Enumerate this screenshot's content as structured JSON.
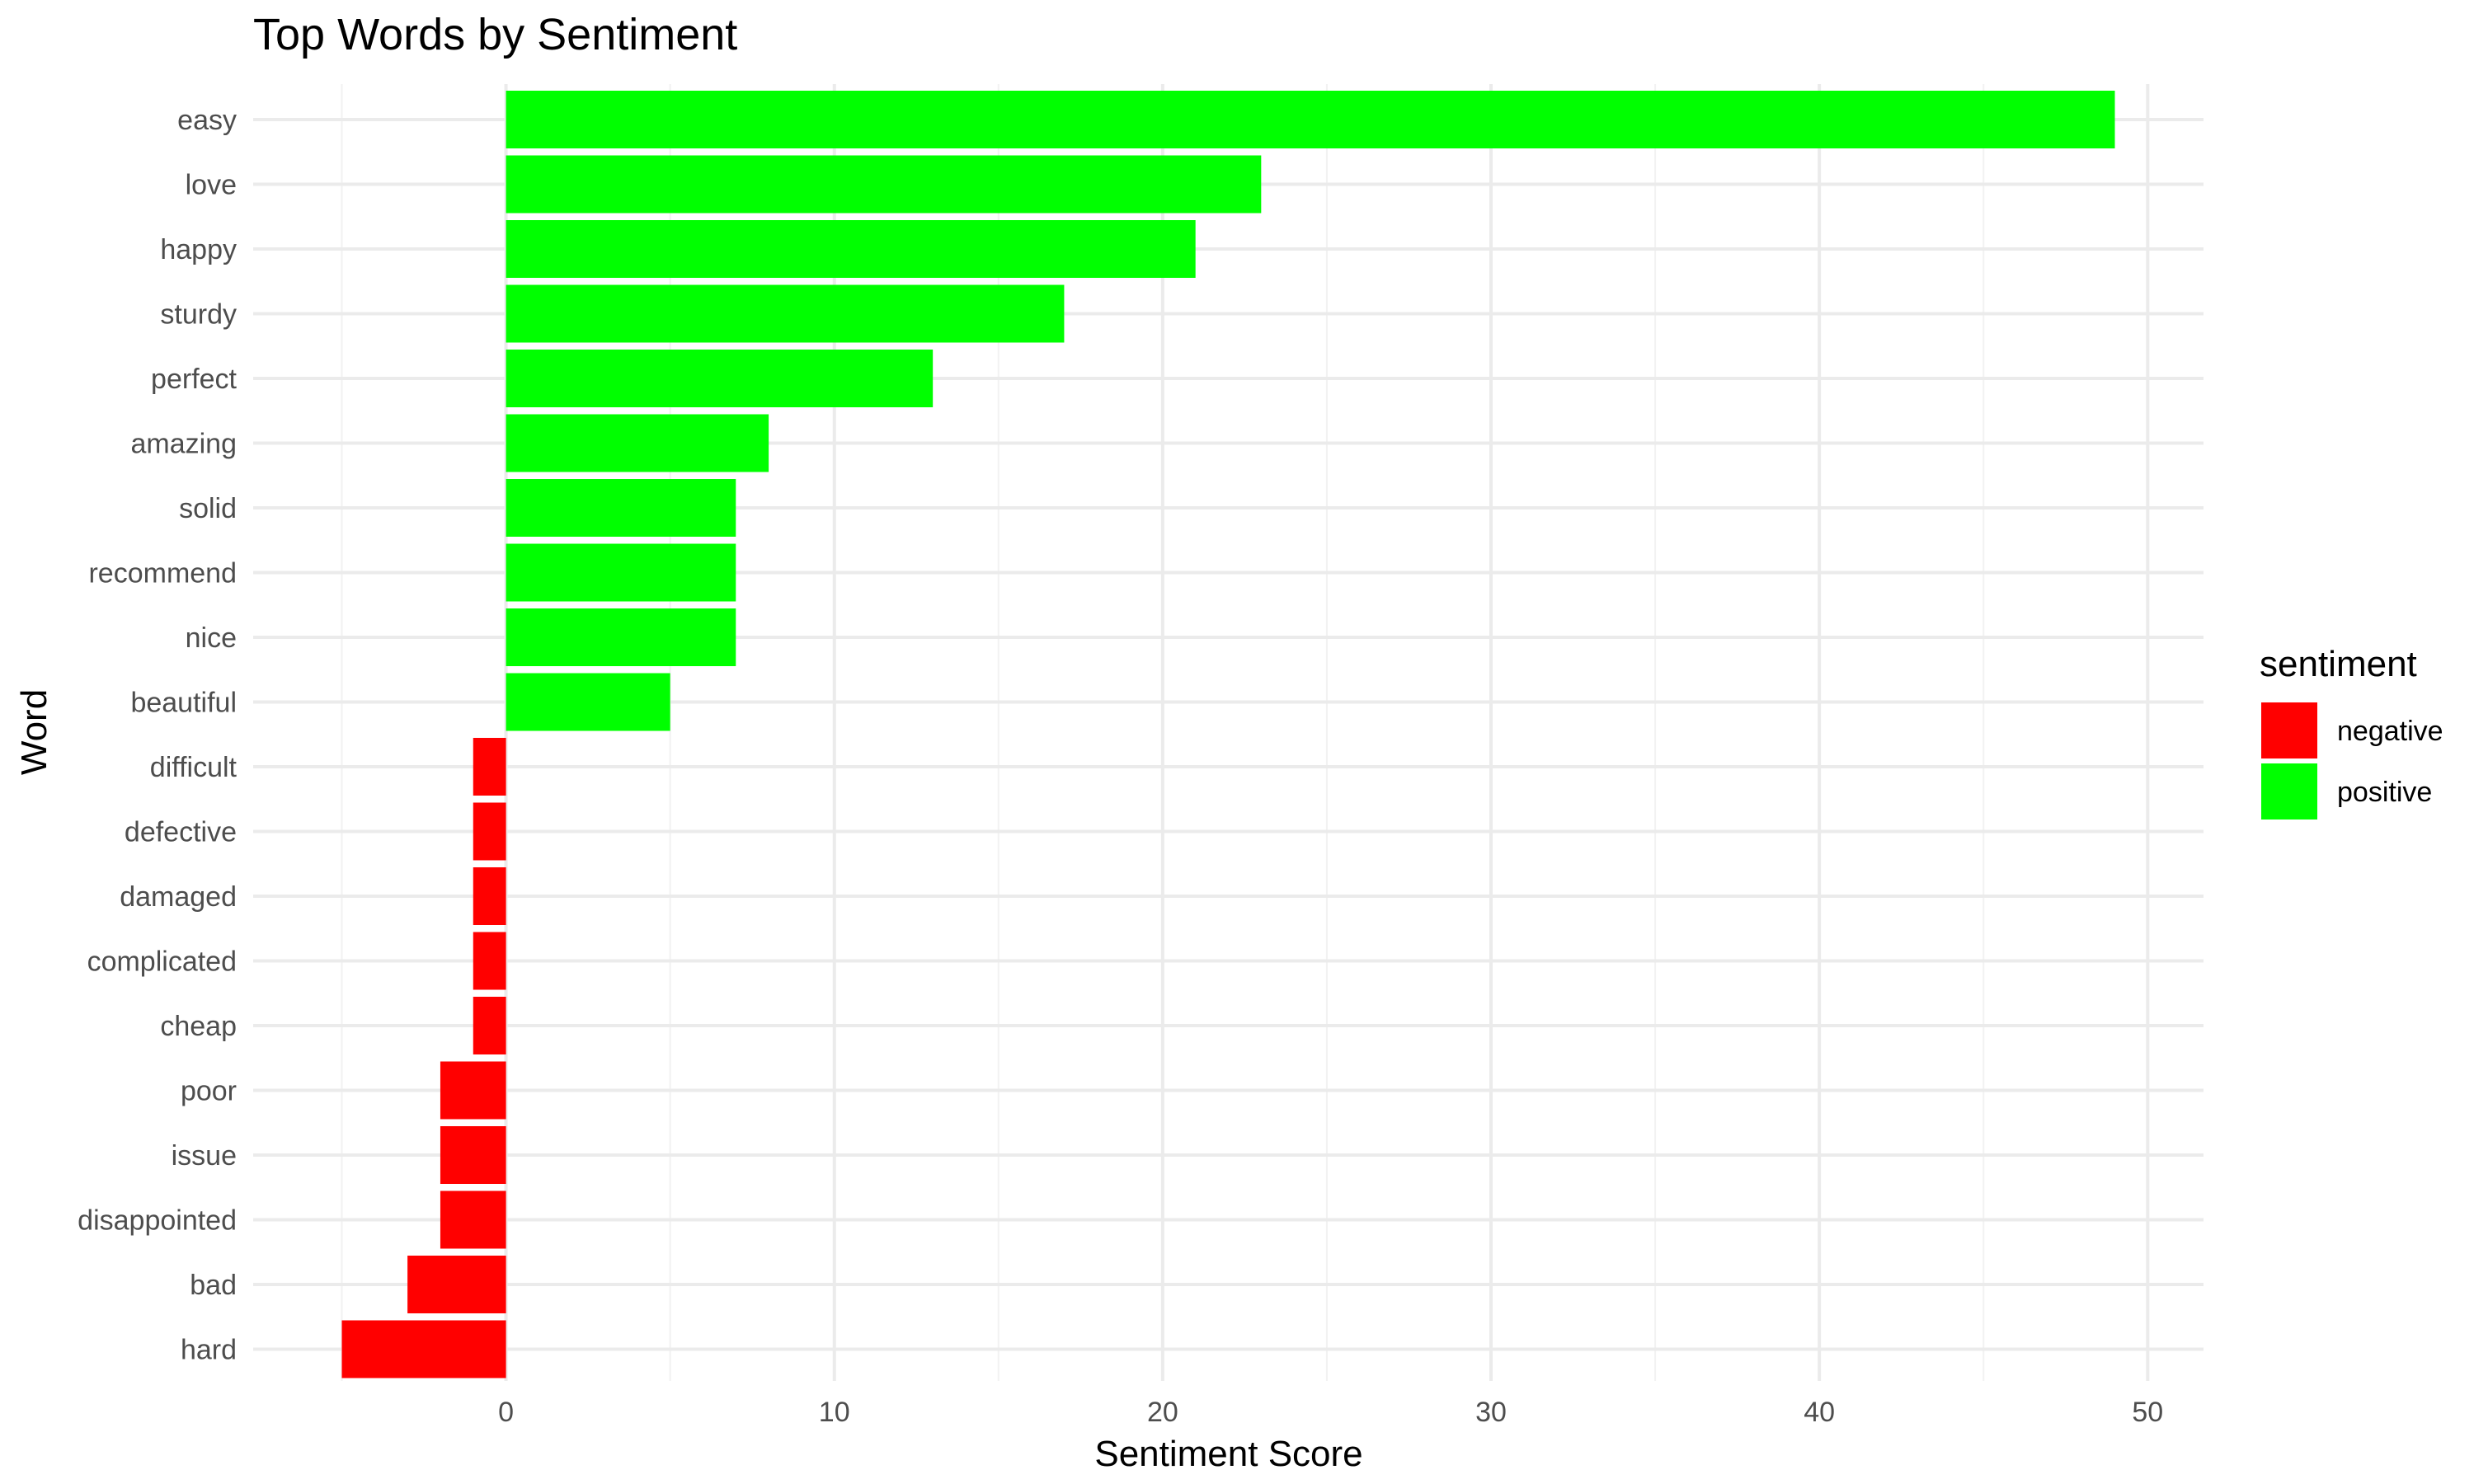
{
  "chart_data": {
    "type": "bar",
    "orientation": "horizontal",
    "title": "Top Words by Sentiment",
    "xlabel": "Sentiment Score",
    "ylabel": "Word",
    "xlim": [
      -7.7,
      51.7
    ],
    "x_ticks": [
      0,
      10,
      20,
      30,
      40,
      50
    ],
    "x_minor_ticks": [
      -5,
      5,
      15,
      25,
      35,
      45
    ],
    "grid": true,
    "legend": {
      "title": "sentiment",
      "placement": "right",
      "entries": [
        {
          "label": "negative",
          "color": "#ff0000"
        },
        {
          "label": "positive",
          "color": "#00ff00"
        }
      ]
    },
    "categories": [
      "easy",
      "love",
      "happy",
      "sturdy",
      "perfect",
      "amazing",
      "solid",
      "recommend",
      "nice",
      "beautiful",
      "difficult",
      "defective",
      "damaged",
      "complicated",
      "cheap",
      "poor",
      "issue",
      "disappointed",
      "bad",
      "hard"
    ],
    "values": [
      49,
      23,
      21,
      17,
      13,
      8,
      7,
      7,
      7,
      5,
      -1,
      -1,
      -1,
      -1,
      -1,
      -2,
      -2,
      -2,
      -3,
      -5
    ],
    "sentiment": [
      "positive",
      "positive",
      "positive",
      "positive",
      "positive",
      "positive",
      "positive",
      "positive",
      "positive",
      "positive",
      "negative",
      "negative",
      "negative",
      "negative",
      "negative",
      "negative",
      "negative",
      "negative",
      "negative",
      "negative"
    ]
  }
}
